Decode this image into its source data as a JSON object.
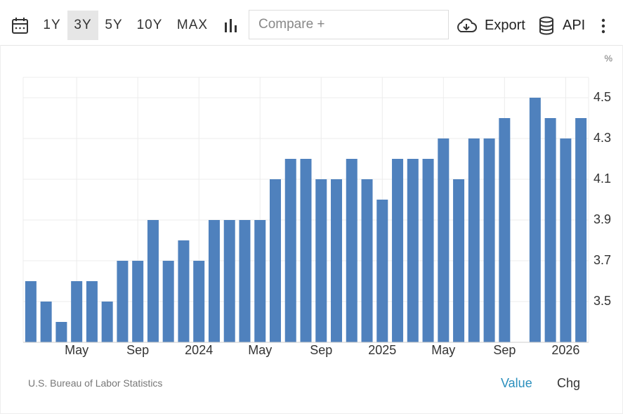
{
  "toolbar": {
    "ranges": [
      "1Y",
      "3Y",
      "5Y",
      "10Y",
      "MAX"
    ],
    "selected_range": 1,
    "compare": "Compare +",
    "export": "Export",
    "api": "API"
  },
  "chart_data": {
    "type": "bar",
    "unit": "%",
    "color": "#4f81bd",
    "categories": [
      null,
      null,
      null,
      "May",
      null,
      null,
      null,
      "Sep",
      null,
      null,
      null,
      "2024",
      null,
      null,
      null,
      "May",
      null,
      null,
      null,
      "Sep",
      null,
      null,
      null,
      "2025",
      null,
      null,
      null,
      "May",
      null,
      null,
      null,
      "Sep",
      null,
      null,
      null,
      "2026",
      null
    ],
    "values": [
      3.6,
      3.5,
      3.4,
      3.6,
      3.6,
      3.5,
      3.7,
      3.7,
      3.9,
      3.7,
      3.8,
      3.7,
      3.9,
      3.9,
      3.9,
      3.9,
      4.1,
      4.2,
      4.2,
      4.1,
      4.1,
      4.2,
      4.1,
      4.0,
      4.2,
      4.2,
      4.2,
      4.3,
      4.1,
      4.3,
      4.3,
      4.4,
      null,
      4.5,
      4.4,
      4.3,
      4.4
    ],
    "ylim": [
      3.3,
      4.6
    ],
    "yticks": [
      3.5,
      3.7,
      3.9,
      4.1,
      4.3,
      4.5
    ],
    "grid": true
  },
  "footer": {
    "source": "U.S. Bureau of Labor Statistics",
    "tabs": [
      "Value",
      "Chg"
    ],
    "active_tab": 0
  }
}
